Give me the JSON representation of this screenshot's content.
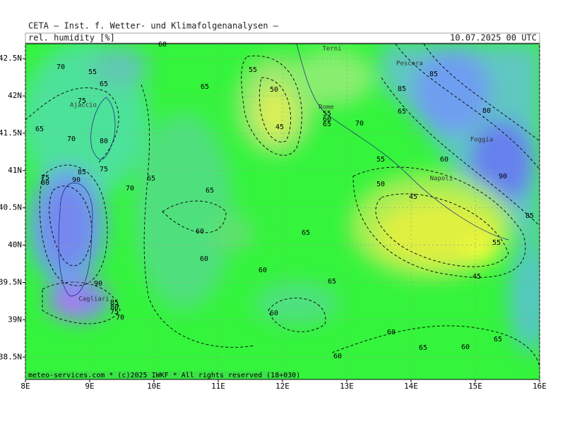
{
  "header": {
    "title": "CETA — Inst. f. Wetter- und Klimafolgenanalysen —",
    "parameter": "rel. humidity [%]",
    "valid_time": "10.07.2025 00 UTC"
  },
  "map": {
    "xlim": [
      8,
      16
    ],
    "ylim": [
      38.2,
      42.7
    ],
    "xticks": [
      {
        "value": 8,
        "label": "8E"
      },
      {
        "value": 9,
        "label": "9E"
      },
      {
        "value": 10,
        "label": "10E"
      },
      {
        "value": 11,
        "label": "11E"
      },
      {
        "value": 12,
        "label": "12E"
      },
      {
        "value": 13,
        "label": "13E"
      },
      {
        "value": 14,
        "label": "14E"
      },
      {
        "value": 15,
        "label": "15E"
      },
      {
        "value": 16,
        "label": "16E"
      }
    ],
    "yticks": [
      {
        "value": 38.5,
        "label": "38.5N"
      },
      {
        "value": 39,
        "label": "39N"
      },
      {
        "value": 39.5,
        "label": "39.5N"
      },
      {
        "value": 40,
        "label": "40N"
      },
      {
        "value": 40.5,
        "label": "40.5N"
      },
      {
        "value": 41,
        "label": "41N"
      },
      {
        "value": 41.5,
        "label": "41.5N"
      },
      {
        "value": 42,
        "label": "42N"
      },
      {
        "value": 42.5,
        "label": "42.5N"
      }
    ],
    "cities": [
      "Terni",
      "Pescara",
      "Ajaccio",
      "Rome",
      "Foggia",
      "Napoli",
      "Cagliari"
    ],
    "contour_labels": [
      "70",
      "55",
      "65",
      "75",
      "65",
      "70",
      "80",
      "75",
      "85",
      "75",
      "80",
      "90",
      "70",
      "65",
      "65",
      "60",
      "55",
      "65",
      "50",
      "45",
      "55",
      "60",
      "65",
      "70",
      "65",
      "85",
      "85",
      "80",
      "55",
      "60",
      "50",
      "45",
      "90",
      "85",
      "60",
      "60",
      "65",
      "60",
      "65",
      "55",
      "45",
      "90",
      "85",
      "80",
      "75",
      "70",
      "60",
      "60",
      "65",
      "60",
      "65",
      "60"
    ]
  },
  "footer": "meteo-services.com * (c)2025 IWKF * All rights reserved (18+030)"
}
